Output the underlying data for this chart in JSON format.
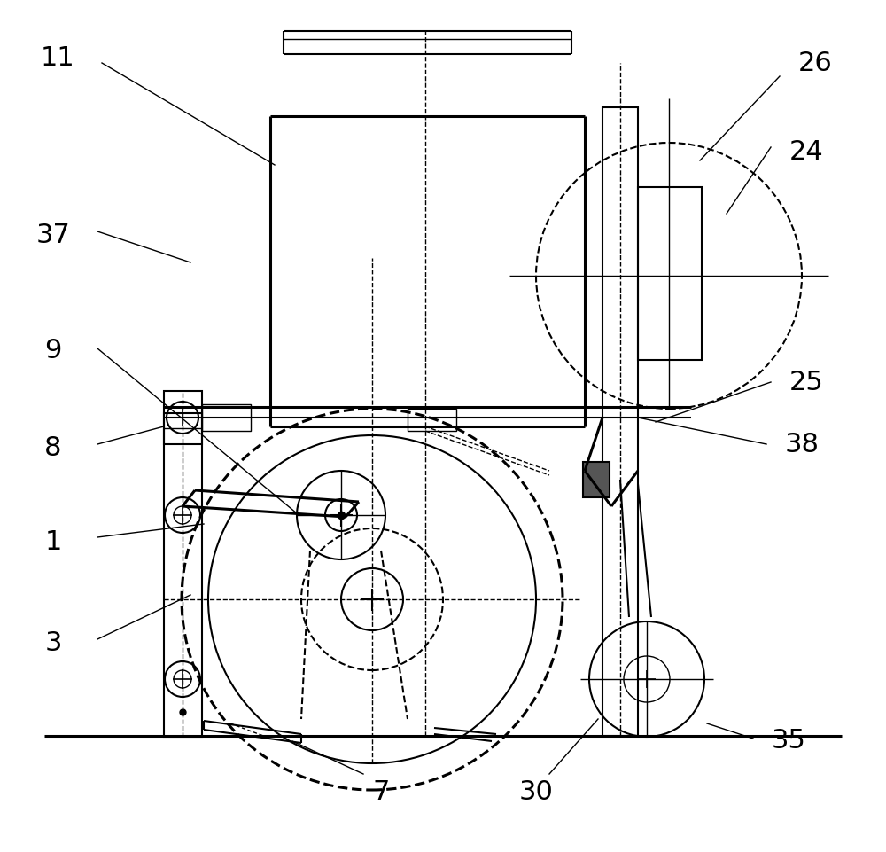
{
  "bg_color": "#ffffff",
  "lw_thick": 2.2,
  "lw_med": 1.5,
  "lw_thin": 1.0,
  "font_size": 22
}
